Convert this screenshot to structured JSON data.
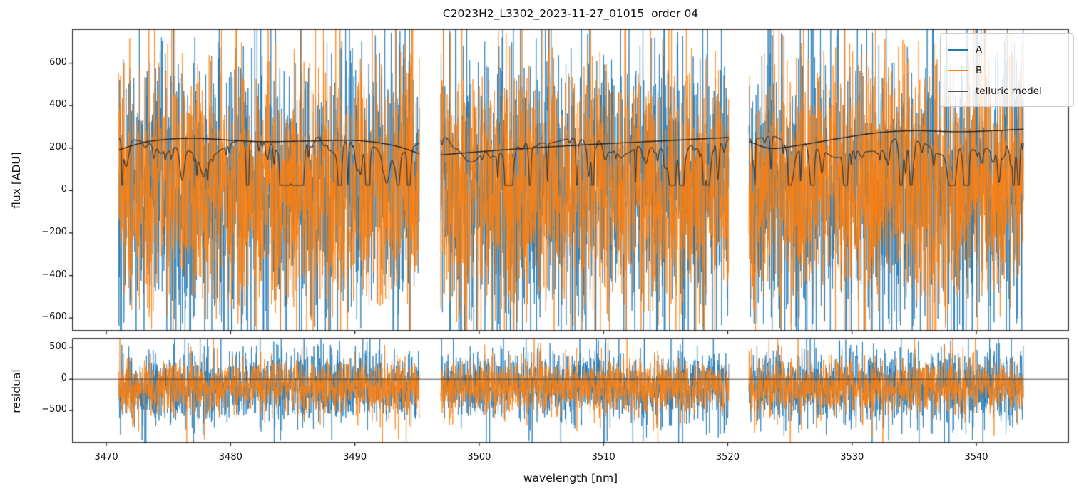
{
  "chart_data": {
    "type": "line",
    "title": "C2023H2_L3302_2023-11-27_01015  order 04",
    "xlabel": "wavelength [nm]",
    "xlim": [
      3467.3,
      3547.4
    ],
    "xticks": [
      3470,
      3480,
      3490,
      3500,
      3510,
      3520,
      3530,
      3540
    ],
    "segments_nm": [
      [
        3471.0,
        3495.2
      ],
      [
        3496.9,
        3520.1
      ],
      [
        3521.7,
        3543.8
      ]
    ],
    "panels": [
      {
        "name": "flux",
        "ylabel": "flux [ADU]",
        "ylim": [
          -660,
          760
        ],
        "yticks": [
          600,
          400,
          200,
          0,
          -200,
          -400,
          -600
        ],
        "grid": false
      },
      {
        "name": "residual",
        "ylabel": "residual",
        "ylim": [
          -1010,
          650
        ],
        "yticks": [
          500,
          0,
          -500
        ],
        "zero_line": true,
        "grid": false
      }
    ],
    "legend": {
      "position": "upper right",
      "entries": [
        {
          "label": "A",
          "color": "#1f77b4"
        },
        {
          "label": "B",
          "color": "#ff7f0e"
        },
        {
          "label": "telluric model",
          "color": "#555555"
        }
      ]
    },
    "series": [
      {
        "name": "A",
        "color": "#1f77b4",
        "alpha": 0.8,
        "flux_noise": {
          "mean": 20,
          "std": 330
        },
        "residual_noise": {
          "mean": -110,
          "std": 280
        }
      },
      {
        "name": "B",
        "color": "#ff7f0e",
        "alpha": 0.8,
        "flux_noise": {
          "mean": 0,
          "std": 280
        },
        "residual_noise": {
          "mean": -120,
          "std": 210
        }
      }
    ],
    "noise_synthesis": {
      "sample_step_nm": 0.018,
      "heavy_tail_prob": 0.045,
      "heavy_tail_gain": 2.4,
      "seeds": {
        "A_flux": 101,
        "B_flux": 202,
        "A_res": 303,
        "B_res": 404,
        "telluric": 7
      }
    },
    "telluric_model": {
      "color": "#3d3d3d",
      "approx_level_adu": 240,
      "dip_depth_adu_range": [
        20,
        260
      ],
      "dips_per_nm": 3,
      "continuum": {
        "color": "#222222",
        "points": [
          [
            [
              3471.0,
              192
            ],
            [
              3473.5,
              232
            ],
            [
              3477.0,
              246
            ],
            [
              3482.0,
              231
            ],
            [
              3486.0,
              233
            ],
            [
              3490.0,
              236
            ],
            [
              3493.0,
              214
            ],
            [
              3495.2,
              174
            ]
          ],
          [
            [
              3496.9,
              168
            ],
            [
              3502.0,
              192
            ],
            [
              3508.0,
              214
            ],
            [
              3514.0,
              232
            ],
            [
              3520.1,
              250
            ]
          ],
          [
            [
              3521.7,
              232
            ],
            [
              3523.5,
              199
            ],
            [
              3526.0,
              216
            ],
            [
              3529.0,
              246
            ],
            [
              3532.0,
              272
            ],
            [
              3535.0,
              282
            ],
            [
              3539.0,
              277
            ],
            [
              3543.8,
              289
            ]
          ]
        ]
      }
    }
  }
}
